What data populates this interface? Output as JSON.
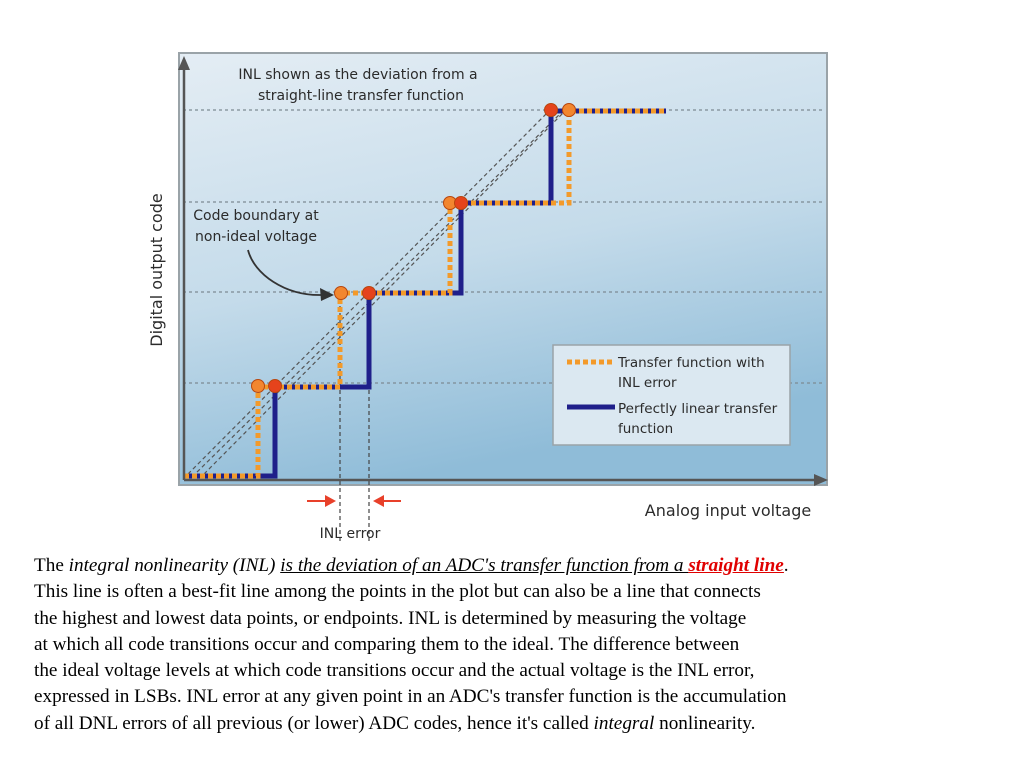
{
  "diagram": {
    "annotation_top_line1": "INL shown as the deviation from a",
    "annotation_top_line2": "straight-line transfer function",
    "annotation_left_line1": "Code boundary at",
    "annotation_left_line2": "non-ideal voltage",
    "y_axis_label": "Digital output code",
    "x_axis_label": "Analog input voltage",
    "inl_error_label": "INL error",
    "legend": {
      "item1_line1": "Transfer function with",
      "item1_line2": "INL error",
      "item2_line1": "Perfectly linear transfer",
      "item2_line2": "function"
    },
    "colors": {
      "inl_transfer": "#f39a2a",
      "linear_transfer": "#1f1f8a",
      "marker": "#e8501e",
      "background_top": "#dfe9f1",
      "background_bottom": "#8fbdd9"
    }
  },
  "caption": {
    "l1_a": "The ",
    "l1_b": "integral nonlinearity (INL)",
    "l1_c": " ",
    "l1_d": "is the deviation of an ADC's transfer function from a ",
    "l1_e": "straight line",
    "l1_f": ".",
    "l2": "This line is often a best-fit line among the points in the plot but can also be a line that connects",
    "l3": "the highest and lowest data points, or endpoints. INL is determined by measuring the voltage",
    "l4": "at which all code transitions occur and comparing them to the ideal. The difference between",
    "l5": "the ideal voltage levels at which code transitions occur and the actual voltage is the INL error,",
    "l6": "expressed in LSBs. INL error at any given point in an ADC's transfer function is the accumulation",
    "l7_a": "of all DNL errors of all previous (or lower) ADC codes, hence it's called ",
    "l7_b": "integral",
    "l7_c": " nonlinearity."
  }
}
